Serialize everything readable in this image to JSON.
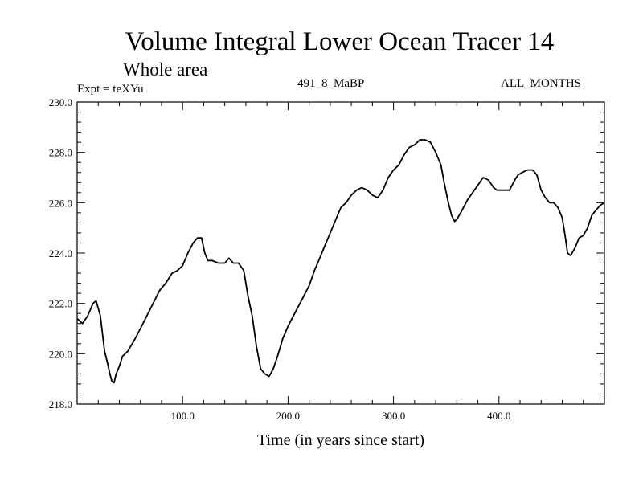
{
  "chart_data": {
    "type": "line",
    "title": "Volume Integral Lower Ocean Tracer 14",
    "subtitle": "Whole area",
    "left_label": "Expt = teXYu",
    "center_label": "491_8_MaBP",
    "right_label": "ALL_MONTHS",
    "xlabel": "Time (in years since start)",
    "ylabel": "",
    "xlim": [
      0,
      500
    ],
    "ylim": [
      218.0,
      230.0
    ],
    "x_ticks": [
      100,
      200,
      300,
      400
    ],
    "x_tick_labels": [
      "100.0",
      "200.0",
      "300.0",
      "400.0"
    ],
    "y_ticks": [
      218,
      220,
      222,
      224,
      226,
      228,
      230
    ],
    "y_tick_labels": [
      "218.0",
      "220.0",
      "222.0",
      "224.0",
      "226.0",
      "228.0",
      "230.0"
    ],
    "grid": false,
    "line_color": "#000000",
    "series": [
      {
        "x": [
          0,
          5,
          10,
          15,
          18,
          22,
          26,
          29,
          31,
          33,
          35,
          37,
          40,
          43,
          48,
          55,
          60,
          66,
          72,
          78,
          84,
          90,
          95,
          100,
          105,
          110,
          114,
          118,
          121,
          124,
          128,
          134,
          140,
          144,
          148,
          153,
          158,
          162,
          166,
          170,
          174,
          178,
          182,
          186,
          190,
          195,
          200,
          205,
          210,
          215,
          220,
          225,
          230,
          235,
          240,
          245,
          250,
          255,
          260,
          265,
          270,
          275,
          280,
          285,
          290,
          295,
          300,
          305,
          310,
          315,
          320,
          325,
          330,
          335,
          340,
          345,
          348,
          352,
          355,
          358,
          361,
          365,
          370,
          375,
          380,
          385,
          390,
          395,
          398,
          400,
          405,
          410,
          415,
          418,
          422,
          427,
          432,
          436,
          440,
          444,
          448,
          452,
          456,
          460,
          463,
          465,
          468,
          472,
          476,
          480,
          484,
          488,
          492,
          496,
          500
        ],
        "y": [
          221.4,
          221.2,
          221.5,
          222.0,
          222.1,
          221.5,
          220.1,
          219.6,
          219.2,
          218.9,
          218.85,
          219.2,
          219.5,
          219.9,
          220.1,
          220.6,
          221.0,
          221.5,
          222.0,
          222.5,
          222.8,
          223.2,
          223.3,
          223.5,
          224.0,
          224.4,
          224.6,
          224.6,
          224.0,
          223.7,
          223.7,
          223.6,
          223.6,
          223.8,
          223.6,
          223.6,
          223.3,
          222.3,
          221.5,
          220.3,
          219.4,
          219.2,
          219.1,
          219.4,
          219.9,
          220.6,
          221.1,
          221.5,
          221.9,
          222.3,
          222.7,
          223.3,
          223.8,
          224.3,
          224.8,
          225.3,
          225.8,
          226.0,
          226.3,
          226.5,
          226.6,
          226.5,
          226.3,
          226.2,
          226.5,
          227.0,
          227.3,
          227.5,
          227.9,
          228.2,
          228.3,
          228.5,
          228.5,
          228.4,
          228.0,
          227.5,
          226.8,
          226.0,
          225.5,
          225.25,
          225.4,
          225.7,
          226.1,
          226.4,
          226.7,
          227.0,
          226.9,
          226.6,
          226.5,
          226.5,
          226.5,
          226.5,
          226.9,
          227.1,
          227.2,
          227.3,
          227.3,
          227.1,
          226.5,
          226.2,
          226.0,
          226.0,
          225.8,
          225.4,
          224.6,
          224.0,
          223.9,
          224.2,
          224.6,
          224.7,
          225.0,
          225.5,
          225.7,
          225.9,
          226.0
        ]
      }
    ]
  }
}
